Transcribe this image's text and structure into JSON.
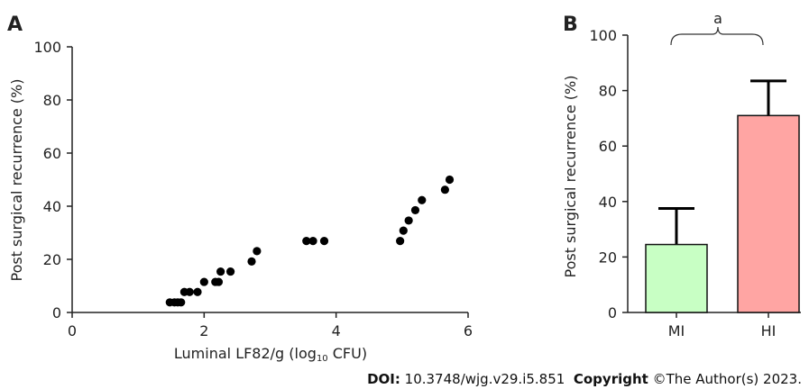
{
  "chart_data": [
    {
      "panel": "A",
      "type": "scatter",
      "xlabel_main": "Luminal LF82/g (log",
      "xlabel_sub": "10",
      "xlabel_unit": " CFU)",
      "ylabel": "Post surgical recurrence (%)",
      "xlim": [
        0,
        6
      ],
      "ylim": [
        0,
        100
      ],
      "xticks": [
        0,
        2,
        4,
        6
      ],
      "yticks": [
        0,
        20,
        40,
        60,
        80,
        100
      ],
      "points": [
        {
          "x": 1.48,
          "y": 3.8
        },
        {
          "x": 1.55,
          "y": 3.8
        },
        {
          "x": 1.6,
          "y": 3.8
        },
        {
          "x": 1.65,
          "y": 3.8
        },
        {
          "x": 1.7,
          "y": 7.7
        },
        {
          "x": 1.78,
          "y": 7.7
        },
        {
          "x": 1.9,
          "y": 7.7
        },
        {
          "x": 2.0,
          "y": 11.5
        },
        {
          "x": 2.17,
          "y": 11.5
        },
        {
          "x": 2.22,
          "y": 11.5
        },
        {
          "x": 2.25,
          "y": 15.4
        },
        {
          "x": 2.4,
          "y": 15.4
        },
        {
          "x": 2.72,
          "y": 19.2
        },
        {
          "x": 2.8,
          "y": 23.1
        },
        {
          "x": 3.55,
          "y": 26.9
        },
        {
          "x": 3.65,
          "y": 26.9
        },
        {
          "x": 3.82,
          "y": 26.9
        },
        {
          "x": 4.97,
          "y": 26.9
        },
        {
          "x": 5.02,
          "y": 30.8
        },
        {
          "x": 5.1,
          "y": 34.6
        },
        {
          "x": 5.2,
          "y": 38.5
        },
        {
          "x": 5.3,
          "y": 42.3
        },
        {
          "x": 5.65,
          "y": 46.2
        },
        {
          "x": 5.72,
          "y": 50.0
        }
      ]
    },
    {
      "panel": "B",
      "type": "bar",
      "ylabel": "Post surgical recurrence (%)",
      "categories": [
        "MI",
        "HI"
      ],
      "values": [
        24.5,
        71
      ],
      "errors": [
        13,
        12.5
      ],
      "colors": [
        "#c8ffc4",
        "#ffa5a3"
      ],
      "ylim": [
        0,
        100
      ],
      "yticks": [
        0,
        20,
        40,
        60,
        80,
        100
      ],
      "significance_label": "a"
    }
  ],
  "footer": {
    "doi_label": "DOI:",
    "doi_value": " 10.3748/wjg.v29.i5.851",
    "copyright_label": "Copyright",
    "copyright_value": " ©The Author(s) 2023."
  }
}
